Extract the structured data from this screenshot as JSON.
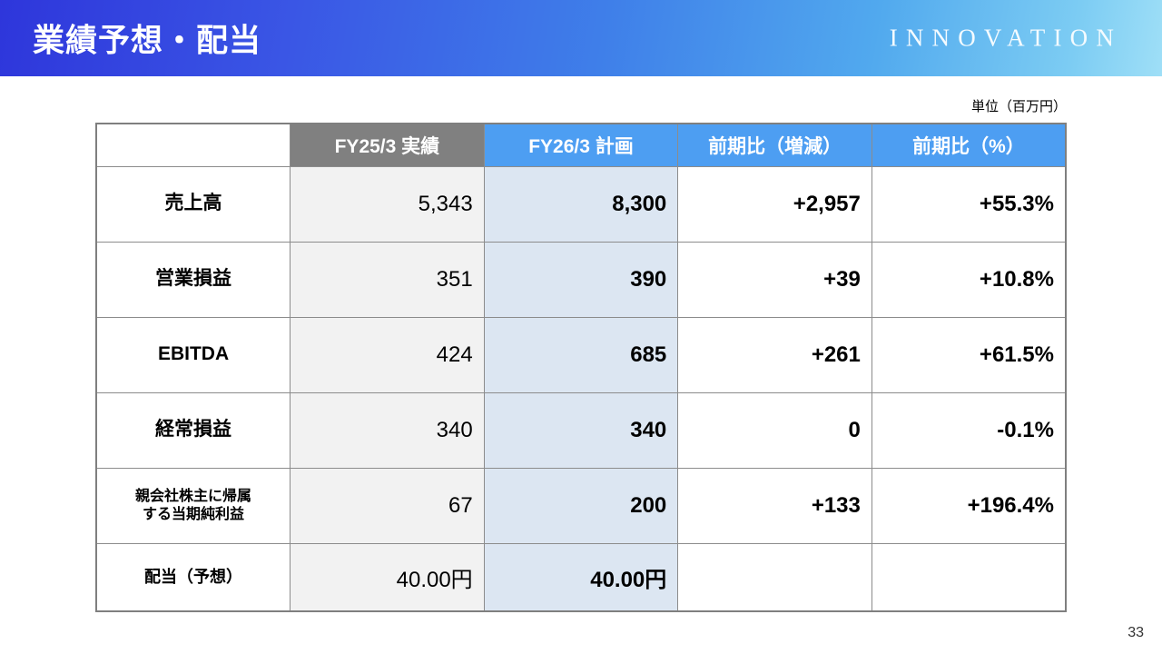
{
  "slide": {
    "title": "業績予想・配当",
    "logo": "INNOVATION",
    "unit_note": "単位（百万円）",
    "page_number": "33"
  },
  "table": {
    "columns": [
      "",
      "FY25/3 実績",
      "FY26/3 計画",
      "前期比（増減）",
      "前期比（%）"
    ],
    "rows": [
      {
        "label": "売上高",
        "fy25": "5,343",
        "fy26": "8,300",
        "diff": "+2,957",
        "pct": "+55.3%"
      },
      {
        "label": "営業損益",
        "fy25": "351",
        "fy26": "390",
        "diff": "+39",
        "pct": "+10.8%"
      },
      {
        "label": "EBITDA",
        "fy25": "424",
        "fy26": "685",
        "diff": "+261",
        "pct": "+61.5%"
      },
      {
        "label": "経常損益",
        "fy25": "340",
        "fy26": "340",
        "diff": "0",
        "pct": "-0.1%"
      },
      {
        "label": "親会社株主に帰属\nする当期純利益",
        "fy25": "67",
        "fy26": "200",
        "diff": "+133",
        "pct": "+196.4%"
      },
      {
        "label": "配当（予想）",
        "fy25": "40.00円",
        "fy26": "40.00円",
        "diff": "",
        "pct": ""
      }
    ]
  },
  "colors": {
    "banner_gradient_start": "#2e36db",
    "banner_gradient_end": "#9fdff7",
    "header_gray": "#808080",
    "header_blue": "#4d9ef2",
    "col_fy25_bg": "#f2f2f2",
    "col_fy26_bg": "#dce6f2",
    "table_border": "#8c8c8c"
  }
}
